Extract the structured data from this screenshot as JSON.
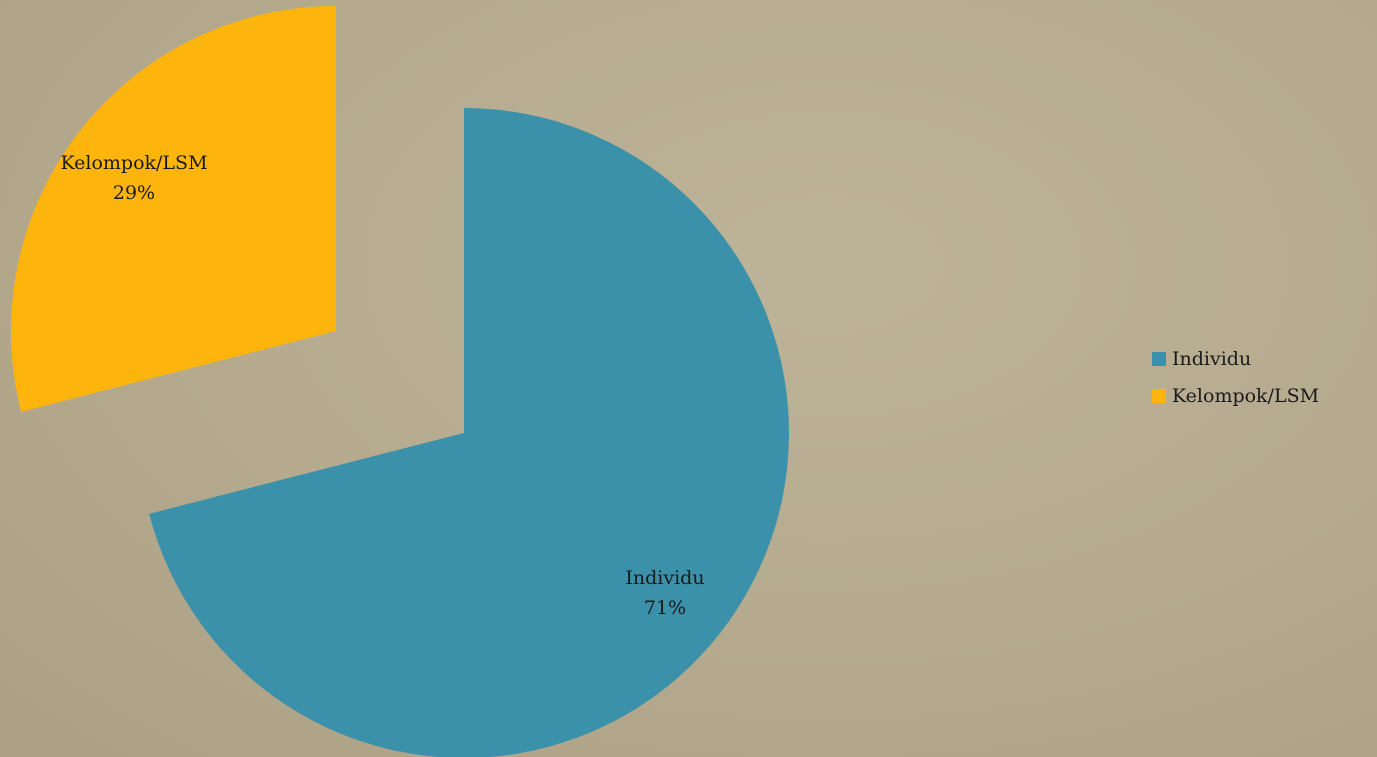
{
  "chart_data": {
    "type": "pie",
    "exploded": true,
    "legend_position": "right",
    "slices": [
      {
        "label": "Individu",
        "value": 71,
        "value_label": "71%",
        "color": "#3b91a9"
      },
      {
        "label": "Kelompok/LSM",
        "value": 29,
        "value_label": "29%",
        "color": "#fdb50e"
      }
    ]
  },
  "legend": {
    "items": [
      {
        "label": "Individu",
        "color": "#3b91a9"
      },
      {
        "label": "Kelompok/LSM",
        "color": "#fdb50e"
      }
    ]
  }
}
